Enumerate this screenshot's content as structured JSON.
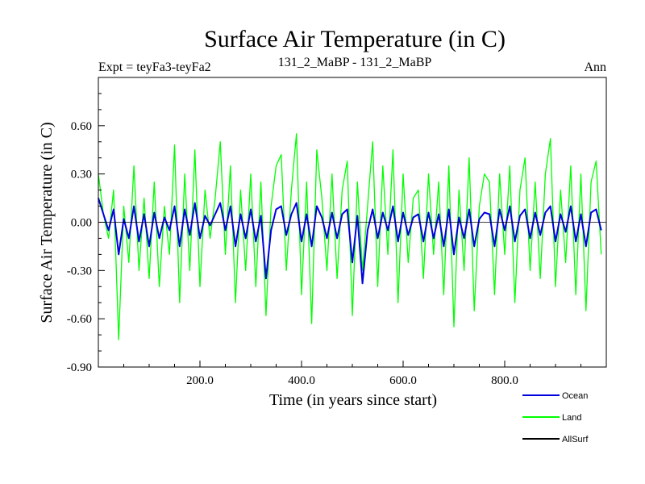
{
  "chart_data": {
    "type": "line",
    "title": "Surface Air Temperature (in C)",
    "subtitle_left": "Expt = teyFa3-teyFa2",
    "subtitle_center": "131_2_MaBP - 131_2_MaBP",
    "subtitle_right": "Ann",
    "xlabel": "Time (in years since start)",
    "ylabel": "Surface Air Temperature (in C)",
    "xlim": [
      0,
      1000
    ],
    "ylim": [
      -0.9,
      0.9
    ],
    "xticks": [
      200,
      400,
      600,
      800
    ],
    "xtick_labels": [
      "200.0",
      "400.0",
      "600.0",
      "800.0"
    ],
    "yticks": [
      -0.9,
      -0.6,
      -0.3,
      0.0,
      0.3,
      0.6
    ],
    "ytick_labels": [
      "-0.90",
      "-0.60",
      "-0.30",
      "0.00",
      "0.30",
      "0.60"
    ],
    "zero_line": 0.0,
    "series": [
      {
        "name": "Land",
        "color": "#00ff00",
        "x_start": 0,
        "x_step": 10,
        "values": [
          0.3,
          0.05,
          -0.1,
          0.2,
          -0.73,
          0.1,
          -0.25,
          0.35,
          -0.3,
          0.15,
          -0.35,
          0.25,
          -0.4,
          0.1,
          -0.2,
          0.48,
          -0.5,
          0.3,
          -0.3,
          0.45,
          -0.4,
          0.2,
          -0.1,
          0.15,
          0.5,
          -0.2,
          0.35,
          -0.5,
          0.2,
          -0.3,
          0.3,
          -0.4,
          0.25,
          -0.58,
          0.1,
          0.35,
          0.42,
          -0.3,
          0.2,
          0.55,
          -0.45,
          0.25,
          -0.63,
          0.45,
          0.15,
          -0.3,
          0.3,
          -0.35,
          0.2,
          0.38,
          -0.58,
          0.25,
          -0.3,
          0.1,
          0.5,
          -0.4,
          0.35,
          -0.2,
          0.45,
          -0.5,
          0.3,
          -0.25,
          0.15,
          0.2,
          -0.35,
          0.3,
          -0.2,
          0.25,
          -0.45,
          0.35,
          -0.65,
          0.2,
          -0.3,
          0.4,
          -0.55,
          0.1,
          0.3,
          0.25,
          -0.45,
          0.3,
          -0.2,
          0.35,
          -0.5,
          0.2,
          0.4,
          -0.3,
          0.25,
          -0.35,
          0.3,
          0.52,
          -0.4,
          0.2,
          -0.25,
          0.35,
          -0.45,
          0.3,
          -0.55,
          0.25,
          0.38,
          -0.2
        ]
      },
      {
        "name": "Ocean",
        "color": "#0000e0",
        "x_start": 0,
        "x_step": 10,
        "values": [
          0.15,
          0.05,
          -0.05,
          0.08,
          -0.2,
          0.02,
          -0.1,
          0.1,
          -0.12,
          0.05,
          -0.15,
          0.06,
          -0.1,
          0.03,
          -0.05,
          0.1,
          -0.15,
          0.08,
          -0.08,
          0.12,
          -0.1,
          0.04,
          -0.02,
          0.05,
          0.12,
          -0.05,
          0.1,
          -0.15,
          0.05,
          -0.1,
          0.08,
          -0.12,
          0.04,
          -0.35,
          -0.05,
          0.08,
          0.1,
          -0.08,
          0.05,
          0.12,
          -0.12,
          0.05,
          -0.15,
          0.1,
          0.03,
          -0.1,
          0.06,
          -0.1,
          0.05,
          0.08,
          -0.25,
          0.04,
          -0.38,
          -0.05,
          0.08,
          -0.1,
          0.06,
          -0.05,
          0.1,
          -0.12,
          0.06,
          -0.08,
          0.03,
          0.05,
          -0.12,
          0.06,
          -0.1,
          0.05,
          -0.15,
          0.08,
          -0.2,
          0.03,
          -0.1,
          0.08,
          -0.15,
          0.02,
          0.06,
          0.05,
          -0.15,
          0.08,
          -0.05,
          0.1,
          -0.12,
          0.04,
          0.08,
          -0.1,
          0.06,
          -0.08,
          0.06,
          0.1,
          -0.12,
          0.05,
          -0.06,
          0.1,
          -0.12,
          0.05,
          -0.15,
          0.06,
          0.08,
          -0.05
        ]
      },
      {
        "name": "AllSurf",
        "color": "#000000",
        "x_start": 0,
        "x_step": 10,
        "values": []
      }
    ],
    "legend_order": [
      "Ocean",
      "Land",
      "AllSurf"
    ],
    "legend_placement": "bottom-right"
  }
}
